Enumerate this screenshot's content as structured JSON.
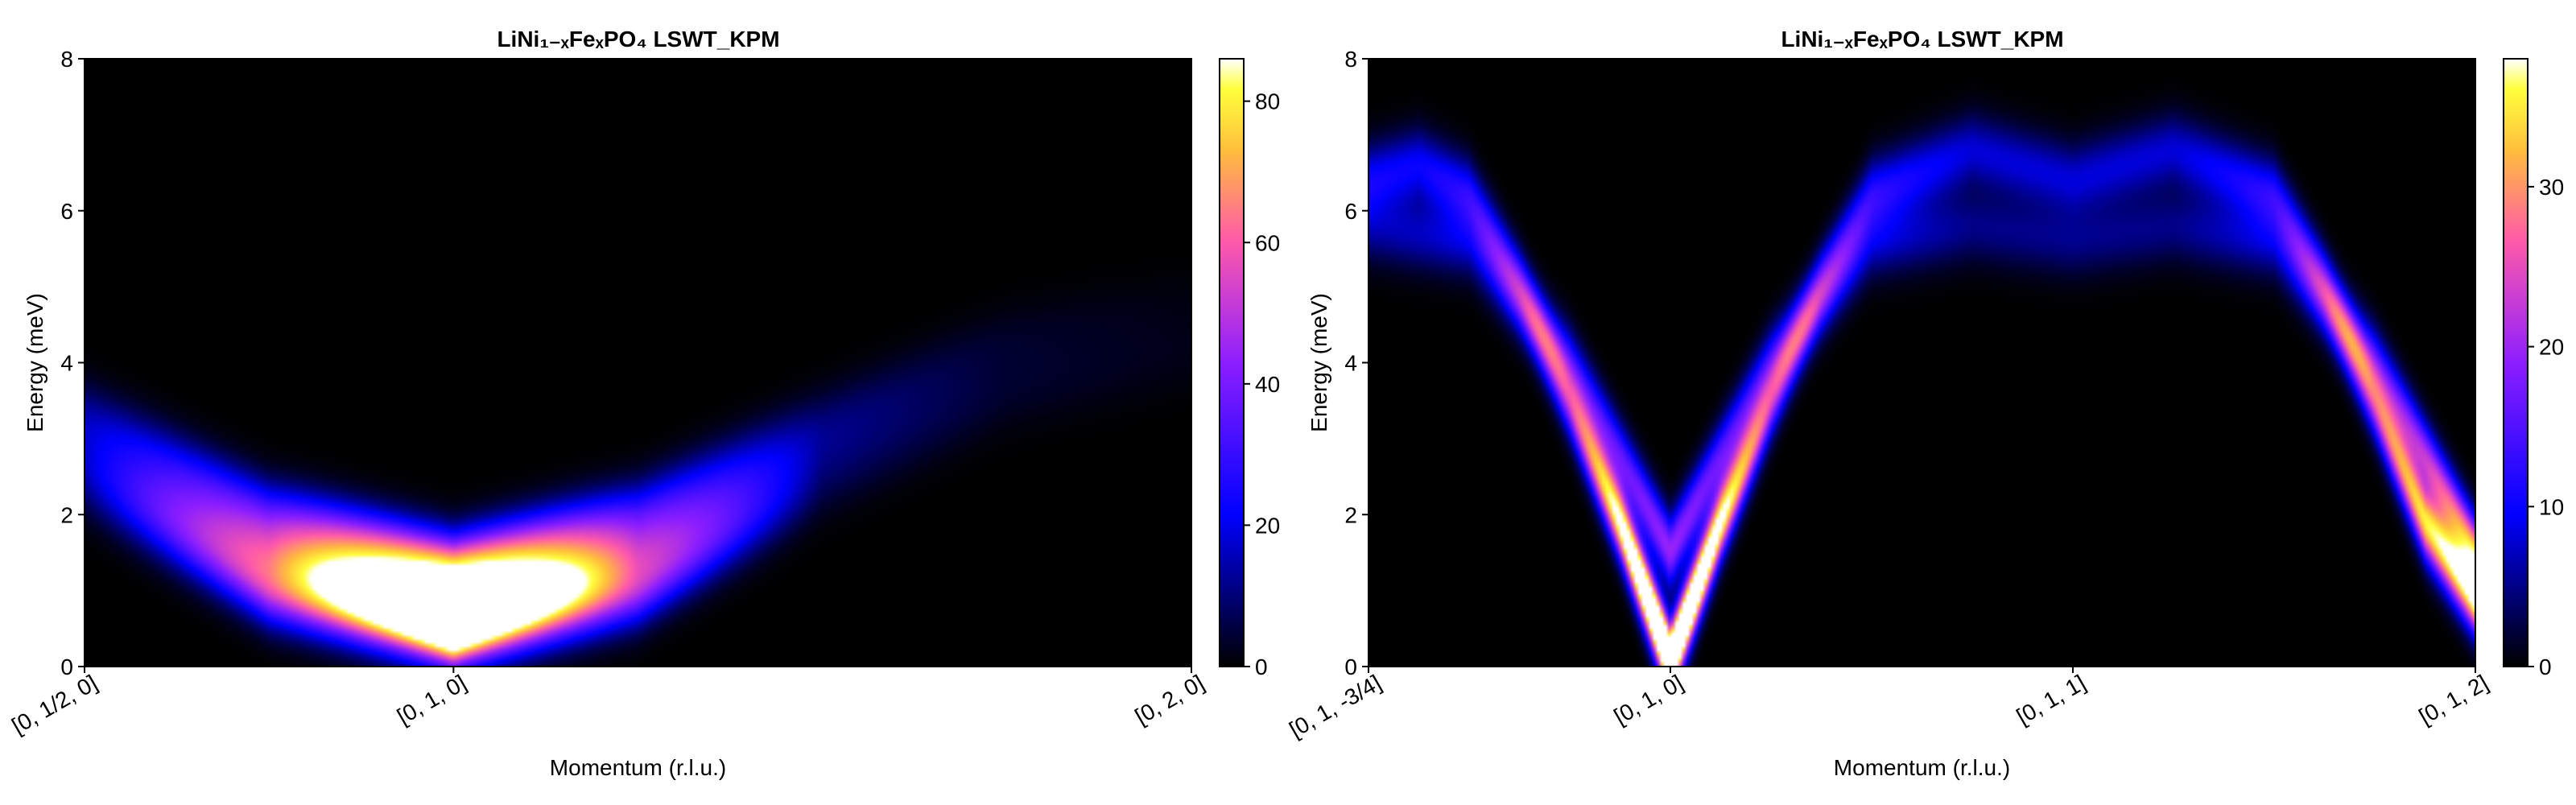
{
  "chart_data": [
    {
      "type": "heatmap",
      "title": "LiNi₁₋ₓFeₓPO₄ LSWT_KPM",
      "xlabel": "Momentum (r.l.u.)",
      "ylabel": "Energy (meV)",
      "x_ticks": [
        "[0, 1/2, 0]",
        "[0, 1, 0]",
        "[0, 2, 0]"
      ],
      "x_tick_positions": [
        0,
        1,
        3
      ],
      "x_range": [
        0,
        3
      ],
      "y_ticks": [
        "0",
        "2",
        "4",
        "6",
        "8"
      ],
      "ylim": [
        0,
        8
      ],
      "colormap": "gnuplot2",
      "colorbar_ticks": [
        "0",
        "20",
        "40",
        "60",
        "80"
      ],
      "colorbar_range": [
        0,
        86
      ],
      "modes": [
        {
          "x": [
            0,
            0.5,
            1,
            1.5,
            2,
            2.5,
            3
          ],
          "energy": [
            3.3,
            2.0,
            1.3,
            2.0,
            3.2,
            4.3,
            4.8
          ],
          "intensity": [
            12,
            28,
            65,
            25,
            8,
            3,
            1
          ]
        },
        {
          "x": [
            0,
            0.5,
            1,
            1.5,
            2,
            2.5,
            3
          ],
          "energy": [
            2.8,
            1.5,
            0.75,
            1.5,
            2.8,
            3.8,
            4.3
          ],
          "intensity": [
            10,
            40,
            95,
            35,
            6,
            2,
            1
          ]
        },
        {
          "x": [
            0,
            0.5,
            1,
            1.5,
            2,
            2.5,
            3
          ],
          "energy": [
            2.4,
            1.0,
            0.45,
            1.0,
            2.4,
            3.5,
            4.0
          ],
          "intensity": [
            8,
            45,
            85,
            40,
            5,
            2,
            1
          ]
        }
      ]
    },
    {
      "type": "heatmap",
      "title": "LiNi₁₋ₓFeₓPO₄ LSWT_KPM",
      "xlabel": "Momentum (r.l.u.)",
      "ylabel": "Energy (meV)",
      "x_ticks": [
        "[0, 1, -3/4]",
        "[0, 1, 0]",
        "[0, 1, 1]",
        "[0, 1, 2]"
      ],
      "x_tick_positions": [
        0,
        0.75,
        1.75,
        2.75
      ],
      "x_range": [
        0,
        2.75
      ],
      "y_ticks": [
        "0",
        "2",
        "4",
        "6",
        "8"
      ],
      "ylim": [
        0,
        8
      ],
      "colormap": "gnuplot2",
      "colorbar_ticks": [
        "0",
        "10",
        "20",
        "30"
      ],
      "colorbar_range": [
        0,
        38
      ],
      "modes": [
        {
          "x": [
            0,
            0.125,
            0.25,
            0.375,
            0.5,
            0.625,
            0.75,
            0.875,
            1.0,
            1.125,
            1.25,
            1.5,
            1.75,
            2.0,
            2.25,
            2.375,
            2.5,
            2.625,
            2.75
          ],
          "energy": [
            6.4,
            6.6,
            6.2,
            5.0,
            3.5,
            1.9,
            0.05,
            1.9,
            3.5,
            5.0,
            6.2,
            6.8,
            6.4,
            6.8,
            6.2,
            5.0,
            3.5,
            1.9,
            0.9
          ],
          "intensity": [
            10,
            10,
            12,
            15,
            22,
            40,
            60,
            40,
            22,
            15,
            12,
            8,
            8,
            8,
            12,
            16,
            24,
            35,
            40
          ]
        },
        {
          "x": [
            0,
            0.25,
            0.5,
            0.75,
            1.0,
            1.25,
            1.5,
            1.75,
            2.0,
            2.25,
            2.5,
            2.75
          ],
          "energy": [
            5.8,
            5.6,
            4.0,
            1.5,
            4.0,
            5.6,
            5.8,
            5.6,
            5.8,
            5.6,
            4.0,
            1.5
          ],
          "intensity": [
            6,
            8,
            12,
            20,
            12,
            8,
            5,
            5,
            5,
            8,
            14,
            30
          ]
        }
      ]
    }
  ]
}
